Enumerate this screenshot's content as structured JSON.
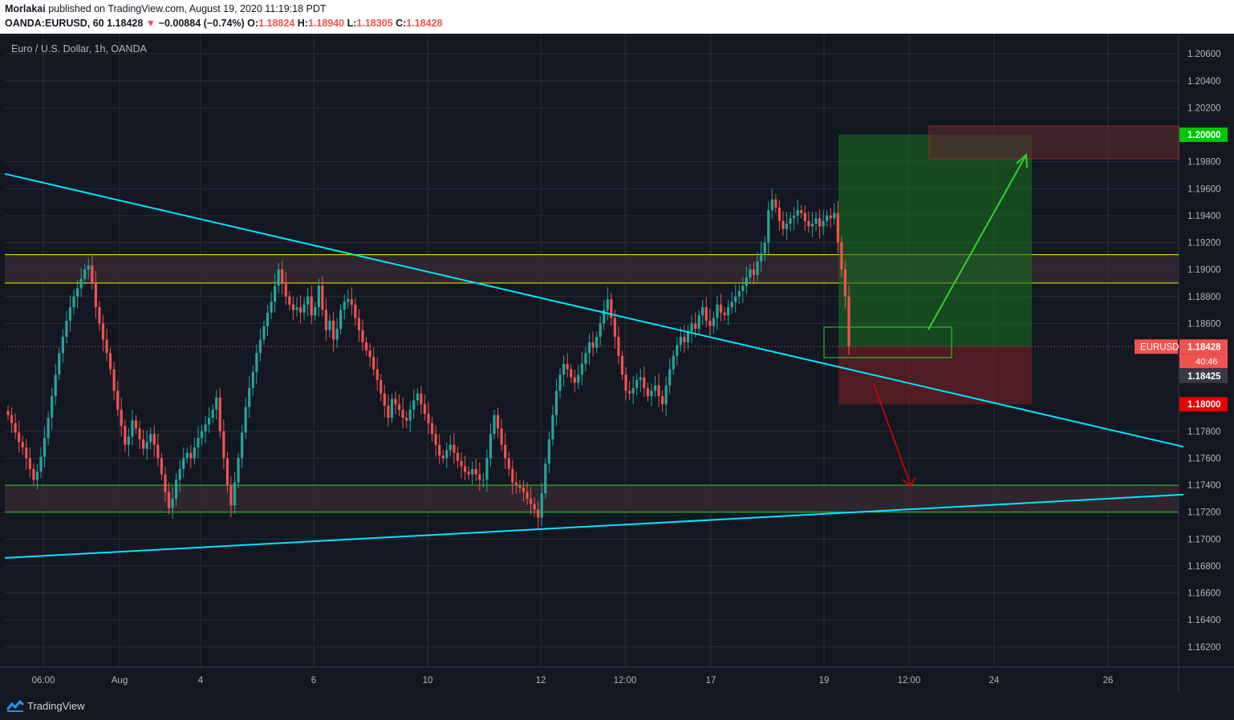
{
  "header": {
    "author": "Morlakai",
    "published_text": "published on TradingView.com, August 19, 2020 11:19:18 PDT",
    "symbol_line": "OANDA:EURUSD, 60",
    "last": "1.18428",
    "change_arrow": "▼",
    "change": "−0.00884 (−0.74%)",
    "o_label": "O:",
    "o_value": "1.18824",
    "h_label": "H:",
    "h_value": "1.18940",
    "l_label": "L:",
    "l_value": "1.18305",
    "c_label": "C:",
    "c_value": "1.18428"
  },
  "footer": {
    "brand": "TradingView",
    "logo_icon": "tradingview-logo-icon"
  },
  "chart_data": {
    "type": "candlestick",
    "title": "Euro / U.S. Dollar, 1h, OANDA",
    "symbol": "EURUSD",
    "y_ticks": [
      "1.20600",
      "1.20400",
      "1.20200",
      "1.19800",
      "1.19600",
      "1.19400",
      "1.19200",
      "1.19000",
      "1.18800",
      "1.18600",
      "1.17800",
      "1.17600",
      "1.17400",
      "1.17200",
      "1.17000",
      "1.16800",
      "1.16600",
      "1.16400",
      "1.16200"
    ],
    "x_ticks": [
      "06:00",
      "Aug",
      "4",
      "6",
      "10",
      "12",
      "12:00",
      "17",
      "19",
      "12:00",
      "24",
      "26"
    ],
    "ylim": [
      1.1605,
      1.2075
    ],
    "price_labels": [
      {
        "text": "1.20000",
        "price": 1.2,
        "color": "#00c805"
      },
      {
        "text": "1.18428",
        "price": 1.18428,
        "color": "#ef5350",
        "tag": "EURUSD",
        "timer": "40:46"
      },
      {
        "text": "1.18425",
        "price": 1.18425,
        "color": "#363a45"
      },
      {
        "text": "1.18000",
        "price": 1.18,
        "color": "#e60000"
      }
    ],
    "colors": {
      "up": "#26a69a",
      "down": "#ef5350",
      "trendline": "#00e5ff",
      "resistance_line": "#f5f500",
      "support_line": "#2fd12f",
      "target_box": "#1a6b1f",
      "stop_box": "#7a1f24"
    },
    "resistance_zone": [
      1.189,
      1.1911
    ],
    "support_zone": [
      1.172,
      1.174
    ],
    "trendlines": [
      {
        "name": "descending",
        "from": {
          "t": 0,
          "p": 1.1971
        },
        "to": {
          "t": 1469,
          "p": 1.17685
        }
      },
      {
        "name": "ascending",
        "from": {
          "t": 0,
          "p": 1.1686
        },
        "to": {
          "t": 1469,
          "p": 1.1733
        }
      }
    ],
    "position": {
      "entry": 1.18428,
      "target": 1.2,
      "stop": 1.18
    },
    "series": [
      {
        "close": [
          1.1792,
          1.1786,
          1.1779,
          1.1772,
          1.1768,
          1.176,
          1.1752,
          1.1744,
          1.175,
          1.1761,
          1.1775,
          1.179,
          1.1806,
          1.1822,
          1.1838,
          1.185,
          1.1862,
          1.1872,
          1.188,
          1.1886,
          1.1893,
          1.19,
          1.1903,
          1.189,
          1.1872,
          1.186,
          1.1848,
          1.1838,
          1.1826,
          1.181,
          1.1796,
          1.1784,
          1.177,
          1.1776,
          1.1788,
          1.1782,
          1.1774,
          1.1767,
          1.1772,
          1.1778,
          1.177,
          1.176,
          1.1748,
          1.1735,
          1.1723,
          1.173,
          1.1744,
          1.1752,
          1.176,
          1.1764,
          1.176,
          1.1768,
          1.1775,
          1.178,
          1.1785,
          1.179,
          1.1796,
          1.1805,
          1.178,
          1.176,
          1.174,
          1.1725,
          1.1742,
          1.176,
          1.1779,
          1.1798,
          1.1812,
          1.1824,
          1.1838,
          1.1848,
          1.1858,
          1.1868,
          1.1876,
          1.1888,
          1.19,
          1.189,
          1.188,
          1.1874,
          1.187,
          1.1872,
          1.1868,
          1.1874,
          1.188,
          1.1866,
          1.1872,
          1.1888,
          1.187,
          1.1855,
          1.1862,
          1.1848,
          1.1856,
          1.187,
          1.1876,
          1.1878,
          1.1874,
          1.1864,
          1.1855,
          1.1846,
          1.184,
          1.1835,
          1.1826,
          1.1818,
          1.1808,
          1.1799,
          1.179,
          1.1804,
          1.18,
          1.1796,
          1.179,
          1.1788,
          1.1796,
          1.1803,
          1.1808,
          1.18,
          1.1793,
          1.1786,
          1.1778,
          1.177,
          1.1762,
          1.176,
          1.1766,
          1.177,
          1.1764,
          1.1758,
          1.1754,
          1.175,
          1.1748,
          1.1752,
          1.1748,
          1.1744,
          1.1744,
          1.176,
          1.1778,
          1.1792,
          1.1782,
          1.177,
          1.176,
          1.1752,
          1.1742,
          1.174,
          1.1738,
          1.1735,
          1.173,
          1.1726,
          1.1722,
          1.1716,
          1.1734,
          1.1756,
          1.1774,
          1.1792,
          1.181,
          1.1822,
          1.183,
          1.1826,
          1.182,
          1.1816,
          1.1822,
          1.183,
          1.1838,
          1.1846,
          1.1842,
          1.185,
          1.186,
          1.187,
          1.1878,
          1.1864,
          1.185,
          1.1836,
          1.1822,
          1.181,
          1.1808,
          1.1812,
          1.1818,
          1.182,
          1.1812,
          1.1806,
          1.181,
          1.1814,
          1.1806,
          1.18,
          1.1814,
          1.1826,
          1.1836,
          1.1844,
          1.185,
          1.1846,
          1.1854,
          1.186,
          1.1856,
          1.1866,
          1.1872,
          1.1862,
          1.1858,
          1.1864,
          1.1874,
          1.1868,
          1.1866,
          1.1872,
          1.1876,
          1.188,
          1.1884,
          1.1888,
          1.1894,
          1.19,
          1.1896,
          1.1906,
          1.1912,
          1.192,
          1.1944,
          1.1952,
          1.1946,
          1.1936,
          1.193,
          1.1934,
          1.1938,
          1.194,
          1.1944,
          1.1942,
          1.1936,
          1.1932,
          1.1934,
          1.1938,
          1.1932,
          1.1936,
          1.194,
          1.1938,
          1.1942,
          1.192,
          1.19,
          1.188,
          1.18428
        ]
      }
    ]
  }
}
